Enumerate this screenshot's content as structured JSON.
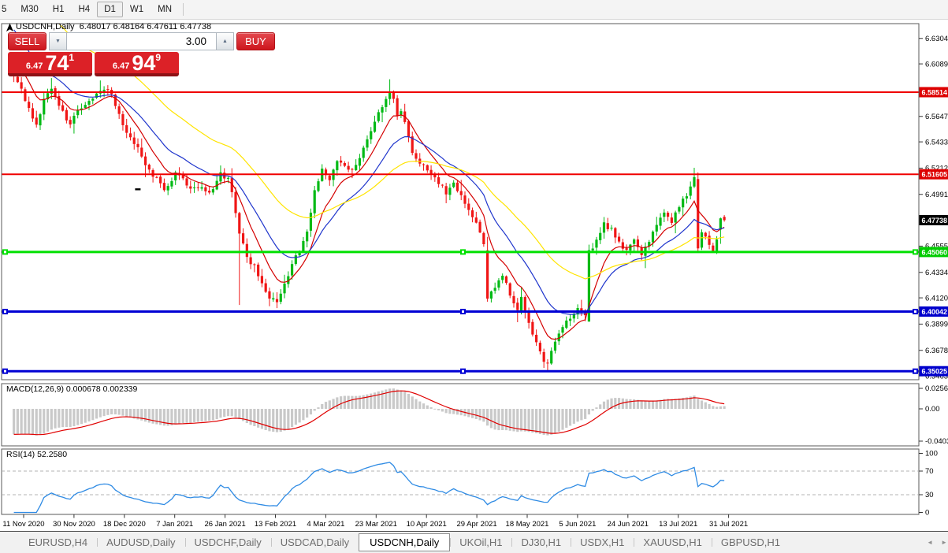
{
  "toolbar": {
    "timeframes": [
      {
        "label": "5",
        "active": false,
        "clipped": true
      },
      {
        "label": "M30",
        "active": false
      },
      {
        "label": "H1",
        "active": false
      },
      {
        "label": "H4",
        "active": false
      },
      {
        "label": "D1",
        "active": true
      },
      {
        "label": "W1",
        "active": false
      },
      {
        "label": "MN",
        "active": false
      }
    ]
  },
  "chart": {
    "title": "USDCNH,Daily  6.48017 6.48164 6.47611 6.47738",
    "symbol": "USDCNH",
    "period": "Daily",
    "ohlc": {
      "open": "6.48017",
      "high": "6.48164",
      "low": "6.47611",
      "close": "6.47738"
    }
  },
  "trade_panel": {
    "sell_label": "SELL",
    "buy_label": "BUY",
    "volume": "3.00",
    "sell_price": {
      "prefix": "6.47",
      "big": "74",
      "sup": "1"
    },
    "buy_price": {
      "prefix": "6.47",
      "big": "94",
      "sup": "9"
    }
  },
  "icons": {
    "volume_down": "▼",
    "volume_up": "▲",
    "tab_scroll_left": "◄",
    "tab_scroll_right": "►"
  },
  "indicators": {
    "macd_label": "MACD(12,26,9) 0.000678 0.002339",
    "rsi_label": "RSI(14) 52.2580"
  },
  "axes": {
    "price_ticks": [
      {
        "label": "6.63040",
        "value": 6.6304
      },
      {
        "label": "6.60895",
        "value": 6.60895
      },
      {
        "label": "6.56475",
        "value": 6.56475
      },
      {
        "label": "6.54330",
        "value": 6.5433
      },
      {
        "label": "6.52120",
        "value": 6.5212
      },
      {
        "label": "6.49910",
        "value": 6.4991
      },
      {
        "label": "6.45555",
        "value": 6.45555
      },
      {
        "label": "6.43345",
        "value": 6.43345
      },
      {
        "label": "6.41200",
        "value": 6.412
      },
      {
        "label": "6.38990",
        "value": 6.3899
      },
      {
        "label": "6.36780",
        "value": 6.3678
      },
      {
        "label": "6.34635",
        "value": 6.34635
      }
    ],
    "macd_ticks": [
      {
        "label": "0.02560",
        "value": 0.0256
      },
      {
        "label": "0.00",
        "value": 0.0
      },
      {
        "label": "-0.04038",
        "value": -0.04038
      }
    ],
    "rsi_ticks": [
      {
        "label": "100",
        "value": 100
      },
      {
        "label": "70",
        "value": 70
      },
      {
        "label": "30",
        "value": 30
      },
      {
        "label": "0",
        "value": 0
      }
    ],
    "rsi_dashed_levels": [
      70,
      30
    ],
    "date_ticks": [
      "11 Nov 2020",
      "30 Nov 2020",
      "18 Dec 2020",
      "7 Jan 2021",
      "26 Jan 2021",
      "13 Feb 2021",
      "4 Mar 2021",
      "23 Mar 2021",
      "10 Apr 2021",
      "29 Apr 2021",
      "18 May 2021",
      "5 Jun 2021",
      "24 Jun 2021",
      "13 Jul 2021",
      "31 Jul 2021"
    ]
  },
  "levels": [
    {
      "price": 6.58514,
      "label": "6.58514",
      "color": "#f00000",
      "badge_color": "#dd0000",
      "width": 2,
      "selected": false
    },
    {
      "price": 6.51605,
      "label": "6.51605",
      "color": "#f00000",
      "badge_color": "#dd0000",
      "width": 2,
      "selected": false
    },
    {
      "price": 6.4506,
      "label": "6.45060",
      "color": "#00e000",
      "badge_color": "#00cc00",
      "width": 3,
      "selected": true
    },
    {
      "price": 6.40042,
      "label": "6.40042",
      "color": "#0000d4",
      "badge_color": "#0000cc",
      "width": 3,
      "selected": true
    },
    {
      "price": 6.35025,
      "label": "6.35025",
      "color": "#0000d4",
      "badge_color": "#0000cc",
      "width": 3,
      "selected": true
    }
  ],
  "last_price": {
    "label": "6.47738",
    "value": 6.47738,
    "badge_color": "#000000",
    "text_color": "#ffffff"
  },
  "tabs": {
    "items": [
      {
        "label": "EURUSD,H4",
        "active": false
      },
      {
        "label": "AUDUSD,Daily",
        "active": false
      },
      {
        "label": "USDCHF,Daily",
        "active": false
      },
      {
        "label": "USDCAD,Daily",
        "active": false
      },
      {
        "label": "USDCNH,Daily",
        "active": true
      },
      {
        "label": "UKOil,H1",
        "active": false
      },
      {
        "label": "DJ30,H1",
        "active": false
      },
      {
        "label": "USDX,H1",
        "active": false
      },
      {
        "label": "XAUUSD,H1",
        "active": false
      },
      {
        "label": "GBPUSD,H1",
        "active": false
      }
    ]
  },
  "chart_data": {
    "type": "candlestick",
    "symbol": "USDCNH",
    "timeframe": "Daily",
    "ylim": [
      6.3431,
      6.6428
    ],
    "date_range": {
      "start": "11 Nov 2020",
      "end": "31 Jul 2021"
    },
    "current_bar": {
      "open": 6.48017,
      "high": 6.48164,
      "low": 6.47611,
      "close": 6.47738
    },
    "candle_count": 190,
    "close_anchors": [
      [
        0,
        6.598
      ],
      [
        2,
        6.588
      ],
      [
        4,
        6.571
      ],
      [
        6,
        6.556
      ],
      [
        8,
        6.579
      ],
      [
        10,
        6.589
      ],
      [
        13,
        6.568
      ],
      [
        15,
        6.556
      ],
      [
        17,
        6.571
      ],
      [
        20,
        6.578
      ],
      [
        23,
        6.588
      ],
      [
        26,
        6.584
      ],
      [
        28,
        6.565
      ],
      [
        30,
        6.551
      ],
      [
        33,
        6.538
      ],
      [
        35,
        6.523
      ],
      [
        38,
        6.512
      ],
      [
        40,
        6.503
      ],
      [
        43,
        6.516
      ],
      [
        45,
        6.511
      ],
      [
        47,
        6.503
      ],
      [
        50,
        6.506
      ],
      [
        52,
        6.499
      ],
      [
        55,
        6.516
      ],
      [
        57,
        6.511
      ],
      [
        58,
        6.502
      ],
      [
        60,
        6.468
      ],
      [
        62,
        6.446
      ],
      [
        64,
        6.438
      ],
      [
        66,
        6.425
      ],
      [
        68,
        6.413
      ],
      [
        70,
        6.408
      ],
      [
        72,
        6.424
      ],
      [
        74,
        6.44
      ],
      [
        76,
        6.452
      ],
      [
        78,
        6.468
      ],
      [
        80,
        6.503
      ],
      [
        82,
        6.519
      ],
      [
        84,
        6.511
      ],
      [
        86,
        6.528
      ],
      [
        88,
        6.523
      ],
      [
        90,
        6.519
      ],
      [
        92,
        6.53
      ],
      [
        94,
        6.544
      ],
      [
        96,
        6.559
      ],
      [
        98,
        6.574
      ],
      [
        100,
        6.585
      ],
      [
        101,
        6.578
      ],
      [
        102,
        6.566
      ],
      [
        103,
        6.571
      ],
      [
        104,
        6.559
      ],
      [
        105,
        6.546
      ],
      [
        106,
        6.532
      ],
      [
        108,
        6.525
      ],
      [
        110,
        6.521
      ],
      [
        112,
        6.513
      ],
      [
        115,
        6.501
      ],
      [
        117,
        6.509
      ],
      [
        120,
        6.491
      ],
      [
        123,
        6.476
      ],
      [
        125,
        6.456
      ],
      [
        126,
        6.412
      ],
      [
        128,
        6.421
      ],
      [
        130,
        6.431
      ],
      [
        132,
        6.415
      ],
      [
        134,
        6.402
      ],
      [
        135,
        6.411
      ],
      [
        137,
        6.391
      ],
      [
        139,
        6.374
      ],
      [
        141,
        6.359
      ],
      [
        142,
        6.356
      ],
      [
        144,
        6.376
      ],
      [
        146,
        6.389
      ],
      [
        148,
        6.396
      ],
      [
        150,
        6.402
      ],
      [
        152,
        6.396
      ],
      [
        153,
        6.452
      ],
      [
        155,
        6.459
      ],
      [
        157,
        6.474
      ],
      [
        159,
        6.469
      ],
      [
        161,
        6.458
      ],
      [
        163,
        6.452
      ],
      [
        165,
        6.461
      ],
      [
        167,
        6.449
      ],
      [
        169,
        6.459
      ],
      [
        171,
        6.474
      ],
      [
        173,
        6.482
      ],
      [
        175,
        6.477
      ],
      [
        177,
        6.49
      ],
      [
        179,
        6.499
      ],
      [
        180,
        6.506
      ],
      [
        181,
        6.514
      ],
      [
        182,
        6.452
      ],
      [
        183,
        6.468
      ],
      [
        184,
        6.462
      ],
      [
        185,
        6.456
      ],
      [
        186,
        6.451
      ],
      [
        187,
        6.462
      ],
      [
        188,
        6.48
      ],
      [
        189,
        6.4774
      ]
    ],
    "special_candles": [
      {
        "i": 10,
        "high": 6.597
      },
      {
        "i": 23,
        "high": 6.595
      },
      {
        "i": 60,
        "low": 6.406
      },
      {
        "i": 100,
        "high": 6.596
      },
      {
        "i": 126,
        "open": 6.452
      },
      {
        "i": 141,
        "low": 6.353
      },
      {
        "i": 142,
        "low": 6.3505
      },
      {
        "i": 153,
        "open": 6.392
      },
      {
        "i": 181,
        "high": 6.5215
      },
      {
        "i": 182,
        "open": 6.512
      },
      {
        "i": 188,
        "open": 6.4695
      },
      {
        "i": 189,
        "open": 6.48017,
        "high": 6.48164,
        "low": 6.47611,
        "close": 6.47738
      }
    ],
    "moving_averages": [
      {
        "name": "fast",
        "period": 9,
        "color": "#d40000"
      },
      {
        "name": "mid",
        "period": 20,
        "color": "#1f35cc"
      },
      {
        "name": "slow",
        "period": 45,
        "color": "#ffe400"
      }
    ],
    "macd": {
      "fast": 12,
      "slow": 26,
      "signal": 9,
      "current_values": [
        0.000678,
        0.002339
      ],
      "hist_color": "#c9c9c9",
      "signal_color": "#e00000"
    },
    "rsi": {
      "period": 14,
      "current": 52.258,
      "color": "#2f8be4"
    },
    "colors": {
      "up": "#00b914",
      "down": "#f01616",
      "background": "#ffffff"
    },
    "objects": [
      {
        "type": "dash-marker",
        "candle_index": 33,
        "price": 6.5035,
        "color": "#000000"
      }
    ]
  }
}
